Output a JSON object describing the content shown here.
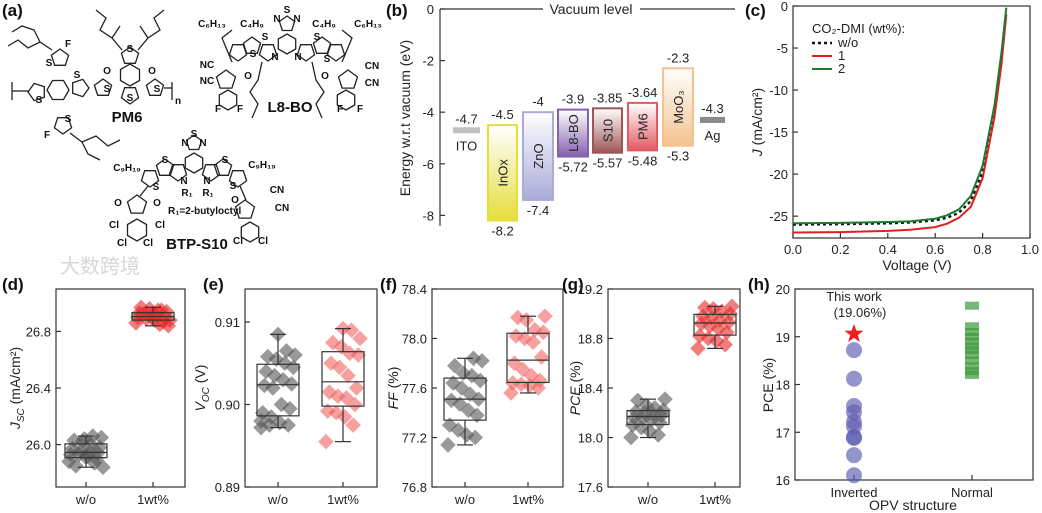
{
  "panel_labels": {
    "a": "(a)",
    "b": "(b)",
    "c": "(c)",
    "d": "(d)",
    "e": "(e)",
    "f": "(f)",
    "g": "(g)",
    "h": "(h)"
  },
  "watermark": "大数跨境",
  "molecules": {
    "pm6": {
      "name": "PM6",
      "atoms": [
        "F",
        "S",
        "S",
        "S",
        "S",
        "S",
        "O",
        "O",
        "S",
        "S",
        "n",
        "S",
        "F"
      ]
    },
    "l8bo": {
      "name": "L8-BO",
      "atoms": [
        "C₆H₁₃",
        "C₄H₉",
        "N",
        "S",
        "N",
        "C₄H₉",
        "C₆H₁₃",
        "S",
        "S",
        "S",
        "S",
        "N",
        "N",
        "NC",
        "NC",
        "O",
        "O",
        "CN",
        "CN",
        "F",
        "F",
        "F",
        "F"
      ]
    },
    "btps10": {
      "name": "BTP-S10",
      "r1_note": "R₁=2-butyloctyl",
      "atoms": [
        "N",
        "S",
        "N",
        "C₉H₁₉",
        "S",
        "S",
        "N",
        "R₁",
        "N",
        "R₁",
        "S",
        "S",
        "C₉H₁₉",
        "O",
        "O",
        "Cl",
        "Cl",
        "Cl",
        "Cl",
        "O",
        "CN",
        "CN",
        "Cl",
        "Cl"
      ]
    }
  },
  "chart_data": [
    {
      "panel": "b",
      "type": "energy-level-diagram",
      "ylabel": "Energy w.r.t vacuum (eV)",
      "ylim": [
        -8.4,
        0
      ],
      "yticks": [
        "0",
        "-2",
        "-4",
        "-6",
        "-8"
      ],
      "ytick_values": [
        0,
        -2,
        -4,
        -6,
        -8
      ],
      "top_label": "Vacuum level",
      "bands": [
        {
          "name": "ITO",
          "top": -4.7,
          "top_label": "-4.7",
          "kind": "line",
          "color": "#c0c0c0"
        },
        {
          "name": "InOx",
          "top": -4.5,
          "bottom": -8.2,
          "top_label": "-4.5",
          "bottom_label": "-8.2",
          "color": "#e6de3c"
        },
        {
          "name": "ZnO",
          "top": -4,
          "bottom": -7.4,
          "top_label": "-4",
          "bottom_label": "-7.4",
          "color": "#a9abd8"
        },
        {
          "name": "L8-BO",
          "top": -3.9,
          "bottom": -5.72,
          "top_label": "-3.9",
          "bottom_label": "-5.72",
          "color": "#8560b0"
        },
        {
          "name": "S10",
          "top": -3.85,
          "bottom": -5.57,
          "top_label": "-3.85",
          "bottom_label": "-5.57",
          "color": "#9c5656"
        },
        {
          "name": "PM6",
          "top": -3.64,
          "bottom": -5.48,
          "top_label": "-3.64",
          "bottom_label": "-5.48",
          "color": "#e25a62"
        },
        {
          "name": "MoO₃",
          "top": -2.3,
          "bottom": -5.3,
          "top_label": "-2.3",
          "bottom_label": "-5.3",
          "color": "#f3c28f"
        },
        {
          "name": "Ag",
          "top": -4.3,
          "top_label": "-4.3",
          "kind": "line",
          "color": "#8a8a8a"
        }
      ]
    },
    {
      "panel": "c",
      "type": "line",
      "xlabel": "Voltage (V)",
      "ylabel": {
        "var": "J",
        "unit": " (mA/cm²)"
      },
      "xlim": [
        0,
        1.0
      ],
      "ylim": [
        -27.6,
        0
      ],
      "xticks": [
        "0.0",
        "0.2",
        "0.4",
        "0.6",
        "0.8",
        "1.0"
      ],
      "xtick_values": [
        0,
        0.2,
        0.4,
        0.6,
        0.8,
        1.0
      ],
      "yticks": [
        "0",
        "-5",
        "-10",
        "-15",
        "-20",
        "-25"
      ],
      "ytick_values": [
        0,
        -5,
        -10,
        -15,
        -20,
        -25
      ],
      "legend_title": "CO₂-DMI (wt%):",
      "legend_position": "top-left",
      "x": [
        0,
        0.2,
        0.4,
        0.5,
        0.6,
        0.65,
        0.7,
        0.75,
        0.8,
        0.85,
        0.88,
        0.9
      ],
      "series": [
        {
          "name": "w/o",
          "color": "#111111",
          "dashed": true,
          "values": [
            -26.0,
            -25.95,
            -25.85,
            -25.75,
            -25.5,
            -25.2,
            -24.6,
            -23.2,
            -19.8,
            -12.5,
            -6.0,
            -0.6
          ]
        },
        {
          "name": "1",
          "color": "#e02020",
          "values": [
            -26.95,
            -26.9,
            -26.75,
            -26.6,
            -26.3,
            -25.9,
            -25.2,
            -23.9,
            -20.5,
            -13.2,
            -6.8,
            -1.0
          ]
        },
        {
          "name": "2",
          "color": "#1a7a30",
          "values": [
            -25.85,
            -25.8,
            -25.7,
            -25.6,
            -25.3,
            -24.9,
            -24.2,
            -22.6,
            -19.0,
            -11.8,
            -5.4,
            -0.2
          ]
        }
      ]
    },
    {
      "panel": "d",
      "type": "box-scatter",
      "ylabel": {
        "var": "J",
        "sub": "SC",
        "unit": " (mA/cm²)"
      },
      "ylim": [
        25.7,
        27.1
      ],
      "yticks": [
        "26.0",
        "26.4",
        "26.8"
      ],
      "ytick_values": [
        26.0,
        26.4,
        26.8
      ],
      "categories": [
        "w/o",
        "1wt%"
      ],
      "series": [
        {
          "name": "w/o",
          "color": "#555555",
          "values": [
            25.88,
            25.9,
            25.92,
            25.93,
            25.93,
            25.94,
            25.95,
            25.96,
            25.97,
            25.98,
            26.0,
            26.02,
            26.03,
            26.05,
            26.06,
            26.04,
            25.85,
            25.84,
            25.87,
            25.91
          ]
        },
        {
          "name": "1wt%",
          "color": "#e82828",
          "values": [
            26.86,
            26.87,
            26.88,
            26.89,
            26.9,
            26.9,
            26.91,
            26.92,
            26.93,
            26.94,
            26.95,
            26.96,
            26.97,
            26.84,
            26.85,
            26.9,
            26.92,
            26.88,
            26.95,
            26.93
          ]
        }
      ]
    },
    {
      "panel": "e",
      "type": "box-scatter",
      "ylabel": {
        "var": "V",
        "sub": "OC",
        "unit": " (V)"
      },
      "ylim": [
        0.89,
        0.914
      ],
      "yticks": [
        "0.89",
        "0.90",
        "0.91"
      ],
      "ytick_values": [
        0.89,
        0.9,
        0.91
      ],
      "categories": [
        "w/o",
        "1wt%"
      ],
      "series": [
        {
          "name": "w/o",
          "color": "#555555",
          "values": [
            0.8972,
            0.8975,
            0.8978,
            0.8985,
            0.899,
            0.8995,
            0.9,
            0.902,
            0.9023,
            0.9025,
            0.903,
            0.9035,
            0.904,
            0.9045,
            0.905,
            0.9055,
            0.9058,
            0.906,
            0.9065,
            0.9085,
            0.8975,
            0.898
          ]
        },
        {
          "name": "1wt%",
          "color": "#f06060",
          "values": [
            0.8955,
            0.8975,
            0.8985,
            0.899,
            0.8992,
            0.9,
            0.9008,
            0.901,
            0.9015,
            0.902,
            0.9035,
            0.9045,
            0.905,
            0.906,
            0.9062,
            0.907,
            0.9075,
            0.908,
            0.909,
            0.9092
          ]
        }
      ]
    },
    {
      "panel": "f",
      "type": "box-scatter",
      "ylabel": {
        "var": "FF",
        "unit": " (%)"
      },
      "ylim": [
        76.8,
        78.4
      ],
      "yticks": [
        "76.8",
        "77.2",
        "77.6",
        "78.0",
        "78.4"
      ],
      "ytick_values": [
        76.8,
        77.2,
        77.6,
        78.0,
        78.4
      ],
      "categories": [
        "w/o",
        "1wt%"
      ],
      "series": [
        {
          "name": "w/o",
          "color": "#555555",
          "values": [
            77.14,
            77.2,
            77.22,
            77.26,
            77.3,
            77.38,
            77.42,
            77.47,
            77.5,
            77.51,
            77.55,
            77.6,
            77.64,
            77.66,
            77.7,
            77.72,
            77.78,
            77.82,
            77.84
          ]
        },
        {
          "name": "1wt%",
          "color": "#f06060",
          "values": [
            77.56,
            77.6,
            77.62,
            77.63,
            77.64,
            77.66,
            77.7,
            77.75,
            77.8,
            77.85,
            77.97,
            78.0,
            78.02,
            78.05,
            78.07,
            78.15,
            78.17,
            78.18
          ]
        }
      ]
    },
    {
      "panel": "g",
      "type": "box-scatter",
      "ylabel": {
        "var": "PCE",
        "unit": " (%)"
      },
      "ylim": [
        17.6,
        19.2
      ],
      "yticks": [
        "17.6",
        "18.0",
        "18.4",
        "18.8",
        "19.2"
      ],
      "ytick_values": [
        17.6,
        18.0,
        18.4,
        18.8,
        19.2
      ],
      "categories": [
        "w/o",
        "1wt%"
      ],
      "series": [
        {
          "name": "w/o",
          "color": "#555555",
          "values": [
            18.0,
            18.02,
            18.05,
            18.08,
            18.1,
            18.12,
            18.14,
            18.15,
            18.16,
            18.18,
            18.19,
            18.2,
            18.21,
            18.22,
            18.24,
            18.26,
            18.3,
            18.31
          ]
        },
        {
          "name": "1wt%",
          "color": "#e82828",
          "values": [
            18.72,
            18.75,
            18.78,
            18.8,
            18.82,
            18.85,
            18.88,
            18.9,
            18.92,
            18.93,
            18.95,
            18.97,
            18.98,
            19.0,
            19.02,
            19.04,
            19.05,
            19.06
          ]
        }
      ]
    },
    {
      "panel": "h",
      "type": "scatter",
      "ylabel": "PCE (%)",
      "xlabel": "OPV structure",
      "ylim": [
        16,
        20
      ],
      "yticks": [
        "16",
        "17",
        "18",
        "19",
        "20"
      ],
      "ytick_values": [
        16,
        17,
        18,
        19,
        20
      ],
      "categories": [
        "Inverted",
        "Normal"
      ],
      "category_colors": [
        "#3a3a9a",
        "#4a8a30"
      ],
      "series": [
        {
          "name": "Inverted",
          "color": "#5a5ab0",
          "values": [
            18.72,
            18.12,
            17.55,
            17.42,
            17.22,
            17.12,
            16.9,
            16.88,
            16.52,
            16.1
          ]
        },
        {
          "name": "Normal",
          "color": "#3a9a3a",
          "values": [
            19.65,
            19.22,
            19.1,
            19.0,
            18.9,
            18.8,
            18.72,
            18.62,
            18.5,
            18.38,
            18.28,
            18.2
          ]
        }
      ],
      "highlight": {
        "label": "This work",
        "value_label": "(19.06%)",
        "value": 19.06,
        "category": "Inverted",
        "color": "#e82020"
      }
    }
  ]
}
